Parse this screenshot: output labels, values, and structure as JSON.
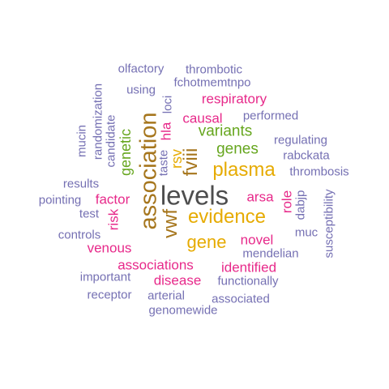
{
  "colors": {
    "dark": "#4d4d4d",
    "orange": "#e6ab02",
    "brown": "#a6761d",
    "green": "#66a61e",
    "magenta": "#e7298a",
    "purple": "#7570b3"
  },
  "words": {
    "levels": "levels",
    "association": "association",
    "evidence": "evidence",
    "plasma": "plasma",
    "gene": "gene",
    "vwf": "vwf",
    "fviii": "fviii",
    "variants": "variants",
    "genes": "genes",
    "genetic": "genetic",
    "rsv": "rsv",
    "respiratory": "respiratory",
    "causal": "causal",
    "factor": "factor",
    "venous": "venous",
    "associations": "associations",
    "identified": "identified",
    "disease": "disease",
    "novel": "novel",
    "arsa": "arsa",
    "risk": "risk",
    "hla": "hla",
    "role": "role",
    "olfactory": "olfactory",
    "thrombotic": "thrombotic",
    "fchotmemtnpo": "fchotmemtnpo",
    "using": "using",
    "loci": "loci",
    "taste": "taste",
    "performed": "performed",
    "regulating": "regulating",
    "rabckata": "rabckata",
    "thrombosis": "thrombosis",
    "mucin": "mucin",
    "randomization": "randomization",
    "candidate": "candidate",
    "results": "results",
    "pointing": "pointing",
    "test": "test",
    "controls": "controls",
    "important": "important",
    "receptor": "receptor",
    "arterial": "arterial",
    "genomewide": "genomewide",
    "associated": "associated",
    "functionally": "functionally",
    "mendelian": "mendelian",
    "muc": "muc",
    "dabjp": "dabjp",
    "susceptibility": "susceptibility"
  }
}
